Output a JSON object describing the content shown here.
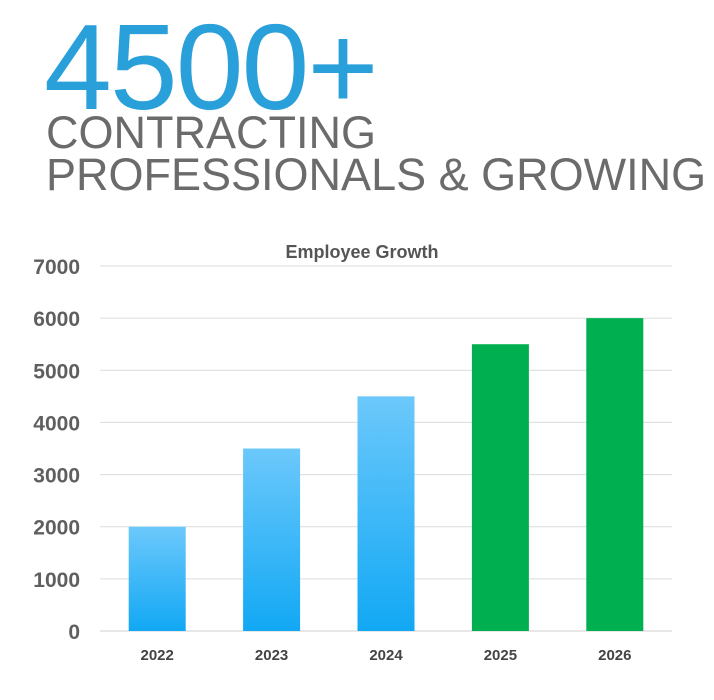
{
  "header": {
    "big_number": "4500+",
    "line1": "CONTRACTING",
    "line2": "PROFESSIONALS & GROWING"
  },
  "colors": {
    "headline": "#2aa0db",
    "subtext": "#6b6b6b",
    "bar_blue_top": "#6cc8fb",
    "bar_blue_bottom": "#12a8f4",
    "bar_green": "#00b050",
    "grid": "#dcdcdc"
  },
  "chart_data": {
    "type": "bar",
    "title": "Employee Growth",
    "categories": [
      "2022",
      "2023",
      "2024",
      "2025",
      "2026"
    ],
    "values": [
      2000,
      3500,
      4500,
      5500,
      6000
    ],
    "bar_styles": [
      "blue",
      "blue",
      "blue",
      "green",
      "green"
    ],
    "ylim": [
      0,
      7000
    ],
    "yticks": [
      0,
      1000,
      2000,
      3000,
      4000,
      5000,
      6000,
      7000
    ],
    "xlabel": "",
    "ylabel": "",
    "grid": true
  }
}
